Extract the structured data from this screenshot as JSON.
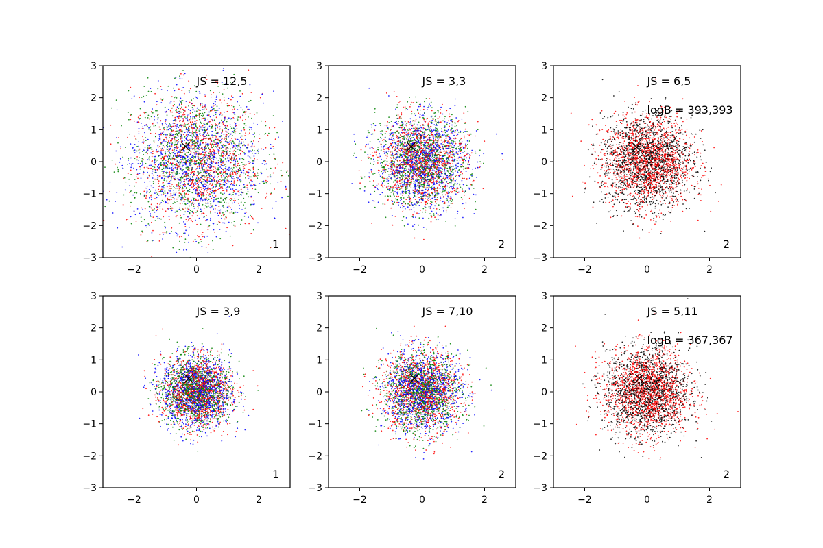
{
  "chart_data": [
    {
      "type": "scatter",
      "panel": 1,
      "xlim": [
        -3,
        3
      ],
      "ylim": [
        -3,
        3
      ],
      "x_ticks": [
        -2,
        0,
        2
      ],
      "y_ticks": [
        -3,
        -2,
        -1,
        0,
        1,
        2,
        3
      ],
      "series_colors": [
        "#0000ff",
        "#ff0000",
        "#008000"
      ],
      "point_spread": 1.05,
      "points_per_series": 1100,
      "center_marker": {
        "symbol": "x",
        "x": -0.35,
        "y": 0.47,
        "color": "#000000"
      },
      "annotations": [
        "JS = 12,5"
      ],
      "corner_label": "1",
      "grid": false
    },
    {
      "type": "scatter",
      "panel": 2,
      "xlim": [
        -3,
        3
      ],
      "ylim": [
        -3,
        3
      ],
      "x_ticks": [
        -2,
        0,
        2
      ],
      "y_ticks": [
        -3,
        -2,
        -1,
        0,
        1,
        2,
        3
      ],
      "series_colors": [
        "#0000ff",
        "#ff0000",
        "#008000"
      ],
      "point_spread": 0.72,
      "points_per_series": 1100,
      "center_marker": {
        "symbol": "x",
        "x": -0.35,
        "y": 0.47,
        "color": "#000000"
      },
      "annotations": [
        "JS = 3,3"
      ],
      "corner_label": "2",
      "grid": false
    },
    {
      "type": "scatter",
      "panel": 3,
      "xlim": [
        -3,
        3
      ],
      "ylim": [
        -3,
        3
      ],
      "x_ticks": [
        -2,
        0,
        2
      ],
      "y_ticks": [
        -3,
        -2,
        -1,
        0,
        1,
        2,
        3
      ],
      "series_colors": [
        "#000000",
        "#ff0000"
      ],
      "point_spread": 0.72,
      "points_per_series": 1500,
      "center_marker": {
        "symbol": "x",
        "x": -0.33,
        "y": 0.45,
        "color": "#000000"
      },
      "annotations": [
        "JS = 6,5",
        "logB = 393,393"
      ],
      "corner_label": "2",
      "grid": false
    },
    {
      "type": "scatter",
      "panel": 4,
      "xlim": [
        -3,
        3
      ],
      "ylim": [
        -3,
        3
      ],
      "x_ticks": [
        -2,
        0,
        2
      ],
      "y_ticks": [
        -3,
        -2,
        -1,
        0,
        1,
        2,
        3
      ],
      "series_colors": [
        "#0000ff",
        "#ff0000",
        "#008000"
      ],
      "point_spread": 0.55,
      "points_per_series": 1100,
      "center_marker": {
        "symbol": "x",
        "x": -0.25,
        "y": 0.42,
        "color": "#000000"
      },
      "annotations": [
        "JS = 3,9"
      ],
      "corner_label": "1",
      "grid": false
    },
    {
      "type": "scatter",
      "panel": 5,
      "xlim": [
        -3,
        3
      ],
      "ylim": [
        -3,
        3
      ],
      "x_ticks": [
        -2,
        0,
        2
      ],
      "y_ticks": [
        -3,
        -2,
        -1,
        0,
        1,
        2,
        3
      ],
      "series_colors": [
        "#0000ff",
        "#ff0000",
        "#008000"
      ],
      "point_spread": 0.62,
      "points_per_series": 1100,
      "center_marker": {
        "symbol": "x",
        "x": -0.25,
        "y": 0.42,
        "color": "#000000"
      },
      "annotations": [
        "JS = 7,10"
      ],
      "corner_label": "2",
      "grid": false
    },
    {
      "type": "scatter",
      "panel": 6,
      "xlim": [
        -3,
        3
      ],
      "ylim": [
        -3,
        3
      ],
      "x_ticks": [
        -2,
        0,
        2
      ],
      "y_ticks": [
        -3,
        -2,
        -1,
        0,
        1,
        2,
        3
      ],
      "series_colors": [
        "#000000",
        "#ff0000"
      ],
      "point_spread": 0.68,
      "points_per_series": 1500,
      "center_marker": {
        "symbol": "x",
        "x": -0.25,
        "y": 0.42,
        "color": "#000000"
      },
      "annotations": [
        "JS = 5,11",
        "logB = 367,367"
      ],
      "corner_label": "2",
      "grid": false
    }
  ]
}
